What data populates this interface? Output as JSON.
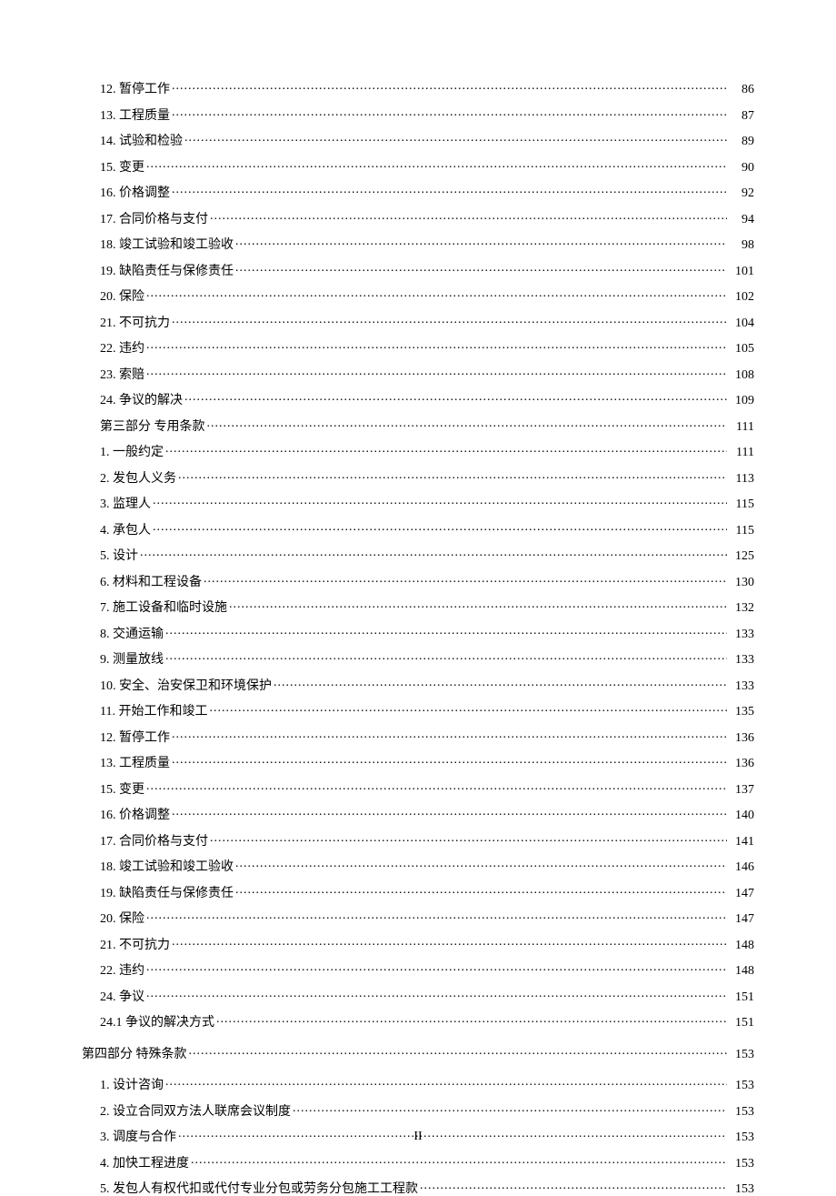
{
  "toc": {
    "section_a": [
      {
        "label": "12. 暂停工作",
        "page": "86",
        "level": 2
      },
      {
        "label": "13. 工程质量",
        "page": "87",
        "level": 2
      },
      {
        "label": "14. 试验和检验",
        "page": "89",
        "level": 2
      },
      {
        "label": "15. 变更",
        "page": "90",
        "level": 2
      },
      {
        "label": "16. 价格调整",
        "page": "92",
        "level": 2
      },
      {
        "label": "17. 合同价格与支付",
        "page": "94",
        "level": 2
      },
      {
        "label": "18. 竣工试验和竣工验收",
        "page": "98",
        "level": 2
      },
      {
        "label": "19. 缺陷责任与保修责任",
        "page": "101",
        "level": 2
      },
      {
        "label": "20. 保险",
        "page": "102",
        "level": 2
      },
      {
        "label": "21. 不可抗力",
        "page": "104",
        "level": 2
      },
      {
        "label": "22. 违约",
        "page": "105",
        "level": 2
      },
      {
        "label": "23. 索赔",
        "page": "108",
        "level": 2
      },
      {
        "label": "24. 争议的解决",
        "page": "109",
        "level": 2
      },
      {
        "label": "第三部分  专用条款",
        "page": "111",
        "level": 2
      },
      {
        "label": "1. 一般约定",
        "page": "111",
        "level": 2
      },
      {
        "label": "2. 发包人义务",
        "page": "113",
        "level": 2
      },
      {
        "label": "3. 监理人",
        "page": "115",
        "level": 2
      },
      {
        "label": "4. 承包人",
        "page": "115",
        "level": 2
      },
      {
        "label": "5. 设计",
        "page": "125",
        "level": 2
      },
      {
        "label": "6. 材料和工程设备",
        "page": "130",
        "level": 2
      },
      {
        "label": "7. 施工设备和临时设施",
        "page": "132",
        "level": 2
      },
      {
        "label": "8. 交通运输",
        "page": "133",
        "level": 2
      },
      {
        "label": "9. 测量放线",
        "page": "133",
        "level": 2
      },
      {
        "label": "10. 安全、治安保卫和环境保护",
        "page": "133",
        "level": 2
      },
      {
        "label": "11. 开始工作和竣工",
        "page": "135",
        "level": 2
      },
      {
        "label": "12. 暂停工作",
        "page": "136",
        "level": 2
      },
      {
        "label": "13. 工程质量",
        "page": "136",
        "level": 2
      },
      {
        "label": "15. 变更",
        "page": "137",
        "level": 2
      },
      {
        "label": "16. 价格调整",
        "page": "140",
        "level": 2
      },
      {
        "label": "17. 合同价格与支付",
        "page": "141",
        "level": 2
      },
      {
        "label": "18. 竣工试验和竣工验收",
        "page": "146",
        "level": 2
      },
      {
        "label": "19. 缺陷责任与保修责任",
        "page": "147",
        "level": 2
      },
      {
        "label": "20. 保险",
        "page": "147",
        "level": 2
      },
      {
        "label": "21. 不可抗力",
        "page": "148",
        "level": 2
      },
      {
        "label": "22. 违约",
        "page": "148",
        "level": 2
      },
      {
        "label": "24. 争议",
        "page": "151",
        "level": 2
      },
      {
        "label": "24.1 争议的解决方式",
        "page": "151",
        "level": 2
      }
    ],
    "part4_heading": {
      "label": "第四部分   特殊条款",
      "page": "153",
      "level": 1
    },
    "section_b": [
      {
        "label": "1. 设计咨询",
        "page": "153",
        "level": 2
      },
      {
        "label": "2. 设立合同双方法人联席会议制度",
        "page": "153",
        "level": 2
      },
      {
        "label": "3. 调度与合作",
        "page": "153",
        "level": 2
      },
      {
        "label": "4. 加快工程进度",
        "page": "153",
        "level": 2
      },
      {
        "label": "5. 发包人有权代扣或代付专业分包或劳务分包施工工程款",
        "page": "153",
        "level": 2
      }
    ]
  },
  "page_number": "II"
}
